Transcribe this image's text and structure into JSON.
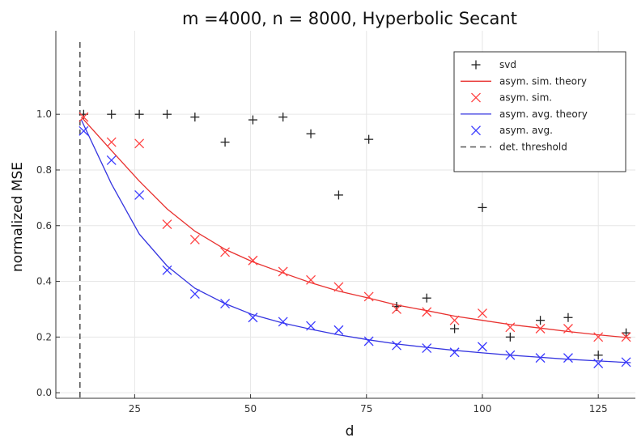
{
  "chart_data": {
    "type": "line",
    "title": "m =4000, n = 8000, Hyperbolic Secant",
    "xlabel": "d",
    "ylabel": "normalized MSE",
    "xlim": [
      8,
      133
    ],
    "ylim": [
      -0.02,
      1.3
    ],
    "xticks": [
      25,
      50,
      75,
      100,
      125
    ],
    "yticks": [
      0.0,
      0.2,
      0.4,
      0.6,
      0.8,
      1.0
    ],
    "xtick_labels": [
      "25",
      "50",
      "75",
      "100",
      "125"
    ],
    "ytick_labels": [
      "0.0",
      "0.2",
      "0.4",
      "0.6",
      "0.8",
      "1.0"
    ],
    "grid": true,
    "legend_position": "top-right",
    "series": [
      {
        "name": "svd",
        "kind": "plus",
        "color": "#222222",
        "x": [
          14,
          20,
          26,
          32,
          38,
          44.5,
          50.5,
          57,
          63,
          69,
          75.5,
          81.5,
          88,
          94,
          100,
          106,
          112.5,
          118.5,
          125,
          131
        ],
        "y": [
          1.0,
          1.0,
          1.0,
          1.0,
          0.99,
          0.9,
          0.98,
          0.99,
          0.93,
          0.71,
          0.91,
          0.31,
          0.34,
          0.23,
          0.665,
          0.2,
          0.26,
          0.27,
          0.135,
          0.215
        ]
      },
      {
        "name": "asym. sim. theory",
        "kind": "line",
        "color": "#e8312f",
        "x": [
          13.5,
          20,
          26,
          32,
          38,
          44.5,
          50.5,
          57,
          63,
          69,
          75.5,
          81.5,
          88,
          94,
          100,
          106,
          112.5,
          118.5,
          125,
          132
        ],
        "y": [
          0.99,
          0.87,
          0.76,
          0.66,
          0.58,
          0.515,
          0.47,
          0.43,
          0.395,
          0.365,
          0.34,
          0.315,
          0.295,
          0.275,
          0.26,
          0.245,
          0.232,
          0.22,
          0.208,
          0.197
        ]
      },
      {
        "name": "asym. sim.",
        "kind": "cross",
        "color": "#ff4040",
        "x": [
          14,
          20,
          26,
          32,
          38,
          44.5,
          50.5,
          57,
          63,
          69,
          75.5,
          81.5,
          88,
          94,
          100,
          106,
          112.5,
          118.5,
          125,
          131
        ],
        "y": [
          0.99,
          0.9,
          0.895,
          0.605,
          0.55,
          0.505,
          0.475,
          0.435,
          0.405,
          0.38,
          0.345,
          0.3,
          0.29,
          0.26,
          0.285,
          0.235,
          0.23,
          0.23,
          0.2,
          0.2
        ]
      },
      {
        "name": "asym. avg. theory",
        "kind": "line",
        "color": "#3535e0",
        "x": [
          13.5,
          20,
          26,
          32,
          38,
          44.5,
          50.5,
          57,
          63,
          69,
          75.5,
          81.5,
          88,
          94,
          100,
          106,
          112.5,
          118.5,
          125,
          132
        ],
        "y": [
          0.98,
          0.75,
          0.57,
          0.455,
          0.375,
          0.32,
          0.28,
          0.25,
          0.228,
          0.208,
          0.19,
          0.175,
          0.163,
          0.152,
          0.143,
          0.135,
          0.127,
          0.12,
          0.114,
          0.108
        ]
      },
      {
        "name": "asym. avg.",
        "kind": "cross",
        "color": "#3a3aff",
        "x": [
          14,
          20,
          26,
          32,
          38,
          44.5,
          50.5,
          57,
          63,
          69,
          75.5,
          81.5,
          88,
          94,
          100,
          106,
          112.5,
          118.5,
          125,
          131
        ],
        "y": [
          0.94,
          0.835,
          0.71,
          0.44,
          0.355,
          0.32,
          0.27,
          0.255,
          0.24,
          0.225,
          0.185,
          0.17,
          0.16,
          0.145,
          0.165,
          0.135,
          0.125,
          0.125,
          0.105,
          0.11
        ]
      },
      {
        "name": "det. threshold",
        "kind": "vline",
        "color": "#555555",
        "x": [
          13.2
        ]
      }
    ]
  }
}
